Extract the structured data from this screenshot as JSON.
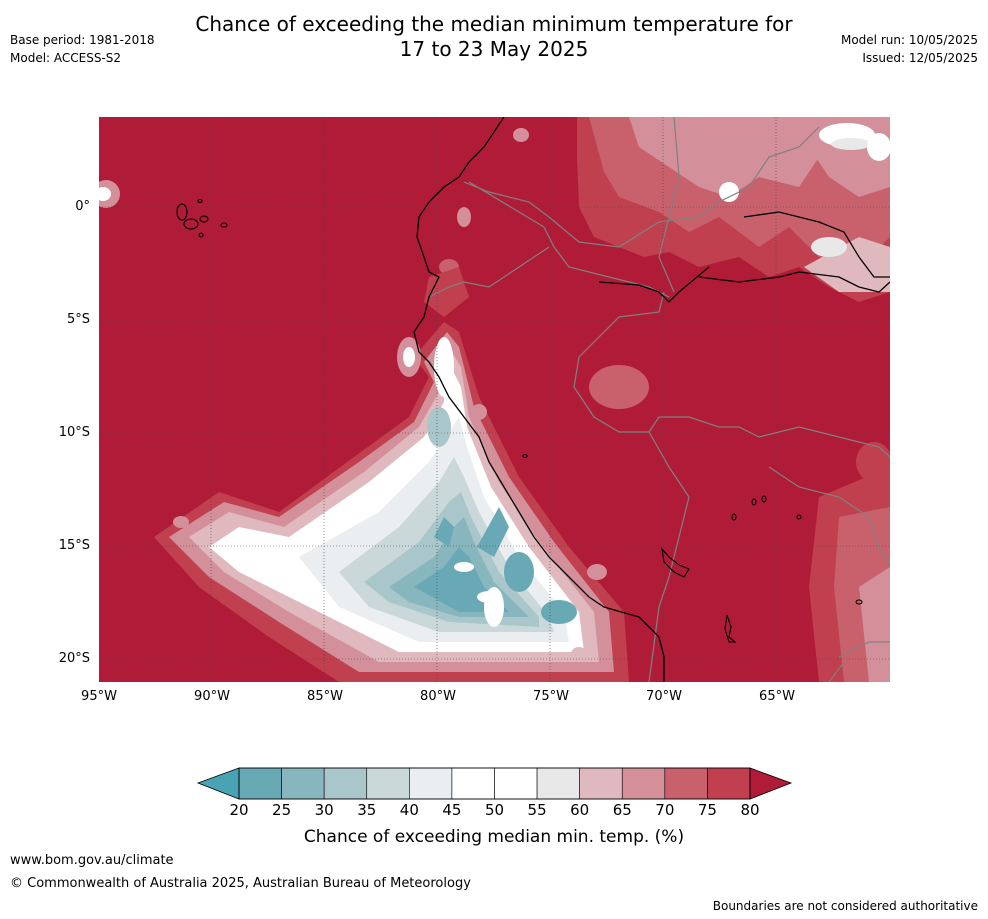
{
  "header": {
    "title_line1": "Chance of exceeding the median minimum temperature for",
    "title_line2": "17 to 23 May 2025",
    "base_period": "Base period: 1981-2018",
    "model": "Model: ACCESS-S2",
    "model_run": "Model run: 10/05/2025",
    "issued": "Issued: 12/05/2025"
  },
  "map": {
    "lat_labels": [
      "0°",
      "5°S",
      "10°S",
      "15°S",
      "20°S"
    ],
    "lon_labels": [
      "95°W",
      "90°W",
      "85°W",
      "80°W",
      "75°W",
      "70°W",
      "65°W"
    ],
    "colors": {
      "deep_red": "#b01c38",
      "red_75": "#c0404f",
      "red_70": "#c9616d",
      "red_65": "#d4909a",
      "pink_60": "#e0b9be",
      "grey_55": "#e8e8e8",
      "white_50": "#ffffff",
      "light_45": "#eaeef0",
      "teal_35": "#cad8da",
      "teal_30": "#a9c6ca",
      "teal_25": "#87b6bf",
      "teal_20": "#68a9b5",
      "teal_low": "#4aa3b3"
    }
  },
  "colorbar": {
    "ticks": [
      "20",
      "25",
      "30",
      "35",
      "40",
      "45",
      "50",
      "55",
      "60",
      "65",
      "70",
      "75",
      "80"
    ],
    "label": "Chance of exceeding median min. temp. (%)",
    "segment_colors": [
      "#68a9b5",
      "#87b6bf",
      "#a9c6ca",
      "#cad8da",
      "#eaeef0",
      "#ffffff",
      "#ffffff",
      "#e8e8e8",
      "#e0b9be",
      "#d4909a",
      "#c9616d",
      "#c0404f"
    ],
    "low_extension_color": "#4aa3b3",
    "high_extension_color": "#b01c38"
  },
  "footer": {
    "website": "www.bom.gov.au/climate",
    "copyright": "© Commonwealth of Australia 2025, Australian Bureau of Meteorology",
    "disclaimer": "Boundaries are not considered authoritative"
  }
}
